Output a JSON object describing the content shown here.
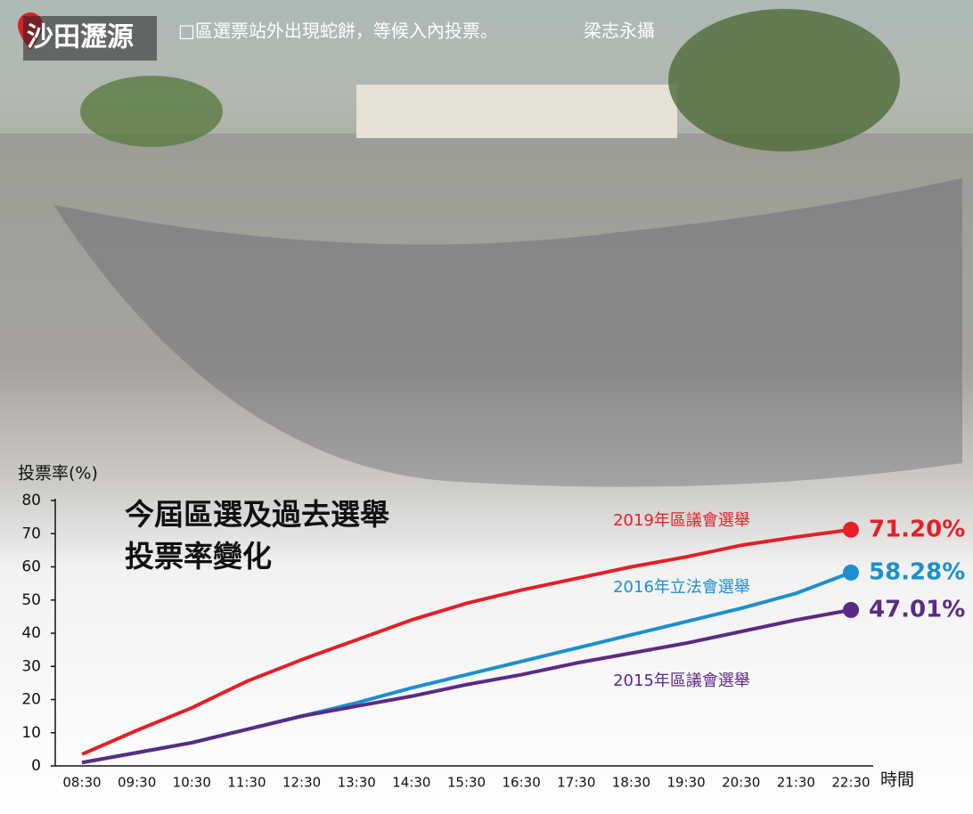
{
  "location": "沙田瀝源",
  "caption": "□區選票站外出現蛇餅，等候入內投票。",
  "photographer": "梁志永攝",
  "chart_data": {
    "type": "line",
    "title": [
      "今屆區選及過去選舉",
      "投票率變化"
    ],
    "y_label": "投票率(%)",
    "x_label": "時間",
    "categories": [
      "08:30",
      "09:30",
      "10:30",
      "11:30",
      "12:30",
      "13:30",
      "14:30",
      "15:30",
      "16:30",
      "17:30",
      "18:30",
      "19:30",
      "20:30",
      "21:30",
      "22:30"
    ],
    "ylim": [
      0,
      80
    ],
    "yticks": [
      0,
      10,
      20,
      30,
      40,
      50,
      60,
      70,
      80
    ],
    "series": [
      {
        "name": "2019年區議會選舉",
        "color": "#e41f26",
        "values": [
          3.5,
          10.7,
          17.5,
          25.5,
          32,
          38,
          44,
          49,
          53,
          56.5,
          60,
          63,
          66.5,
          69,
          71.2
        ],
        "value_labels": [
          null,
          null,
          null,
          null,
          null,
          null,
          null,
          null,
          null,
          null,
          null,
          null,
          null,
          null,
          "71.20%"
        ]
      },
      {
        "name": "2016年立法會選舉",
        "color": "#1b8fcf",
        "values": [
          1,
          4,
          7,
          11,
          15,
          19,
          23.5,
          27.5,
          31.5,
          35.5,
          39.5,
          43.5,
          47.5,
          52,
          58.28
        ],
        "value_labels": [
          null,
          null,
          null,
          null,
          null,
          null,
          null,
          null,
          null,
          null,
          null,
          null,
          null,
          null,
          "58.28%"
        ]
      },
      {
        "name": "2015年區議會選舉",
        "color": "#5b2a86",
        "values": [
          1,
          4,
          7,
          11,
          15,
          18,
          21,
          24.5,
          27.5,
          31,
          34,
          37,
          40.5,
          44,
          47.01
        ],
        "value_labels": [
          null,
          null,
          null,
          null,
          null,
          null,
          null,
          null,
          null,
          null,
          null,
          null,
          null,
          null,
          "47.01%"
        ]
      }
    ]
  }
}
